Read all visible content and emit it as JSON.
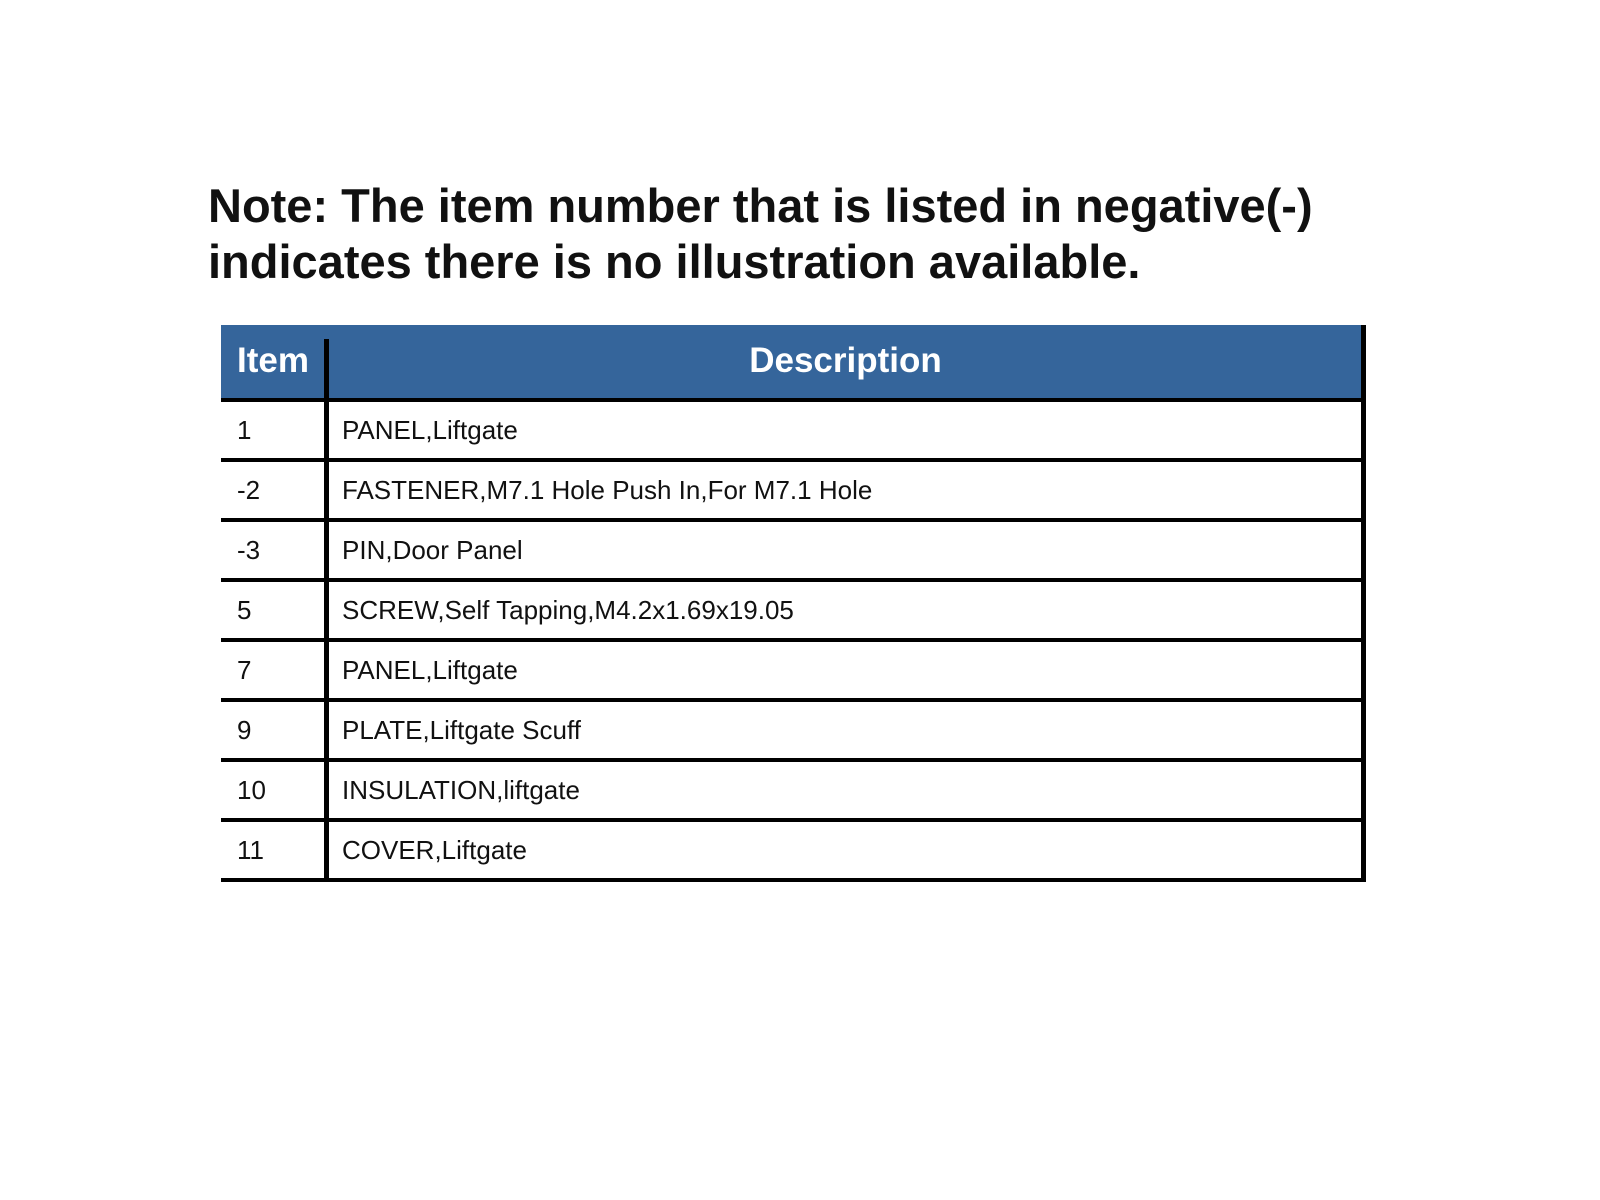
{
  "note": "Note: The item number that is listed in negative(-) indicates there is no illustration available.",
  "table": {
    "headers": [
      "Item",
      "Description"
    ],
    "header_color": "#35659b",
    "rows": [
      {
        "item": "1",
        "description": "PANEL,Liftgate"
      },
      {
        "item": "-2",
        "description": "FASTENER,M7.1 Hole Push In,For M7.1 Hole"
      },
      {
        "item": "-3",
        "description": "PIN,Door Panel"
      },
      {
        "item": "5",
        "description": "SCREW,Self Tapping,M4.2x1.69x19.05"
      },
      {
        "item": "7",
        "description": "PANEL,Liftgate"
      },
      {
        "item": "9",
        "description": "PLATE,Liftgate Scuff"
      },
      {
        "item": "10",
        "description": "INSULATION,liftgate"
      },
      {
        "item": "11",
        "description": "COVER,Liftgate"
      }
    ]
  }
}
